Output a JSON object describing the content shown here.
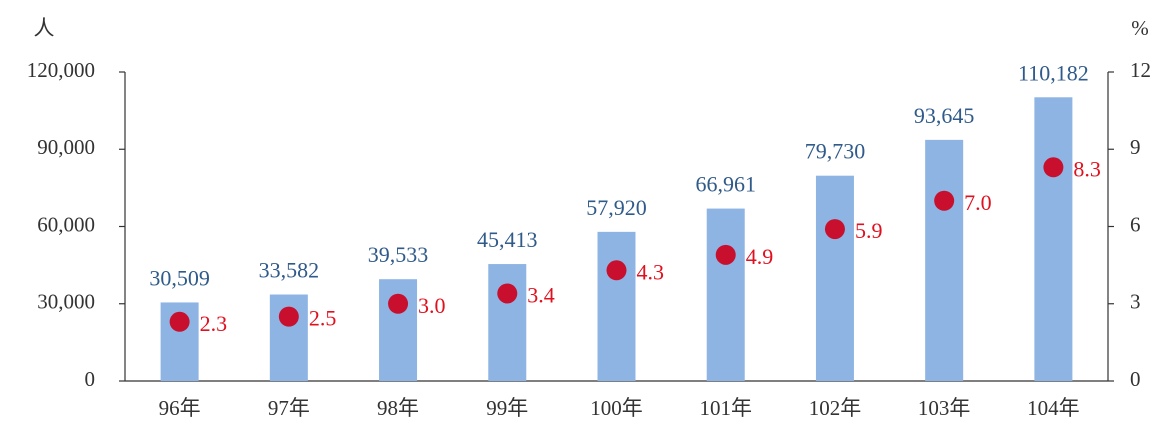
{
  "chart_data": {
    "type": "bar",
    "ylabel": "人",
    "y2label": "%",
    "categories": [
      "96年",
      "97年",
      "98年",
      "99年",
      "100年",
      "101年",
      "102年",
      "103年",
      "104年"
    ],
    "series": [
      {
        "type": "bar",
        "color": "#8eb4e3",
        "label_color": "#2f5a8a",
        "values": [
          30509,
          33582,
          39533,
          45413,
          57920,
          66961,
          79730,
          93645,
          110182
        ],
        "value_labels": [
          "30,509",
          "33,582",
          "39,533",
          "45,413",
          "57,920",
          "66,961",
          "79,730",
          "93,645",
          "110,182"
        ]
      },
      {
        "type": "scatter",
        "axis": "y2",
        "color": "#c8102e",
        "label_color": "#e0101e",
        "values": [
          2.3,
          2.5,
          3.0,
          3.4,
          4.3,
          4.9,
          5.9,
          7.0,
          8.3
        ],
        "value_labels": [
          "2.3",
          "2.5",
          "3.0",
          "3.4",
          "4.3",
          "4.9",
          "5.9",
          "7.0",
          "8.3"
        ]
      }
    ],
    "ylim": [
      0,
      120000
    ],
    "yticks": [
      0,
      {
        "value": 30000,
        "label": "30,000"
      },
      {
        "value": 60000,
        "label": "60,000"
      },
      {
        "value": 90000,
        "label": "90,000"
      },
      {
        "value": 120000,
        "label": "120,000"
      }
    ],
    "y2lim": [
      0,
      12
    ],
    "y2ticks": [
      0,
      3,
      6,
      9,
      12
    ]
  }
}
